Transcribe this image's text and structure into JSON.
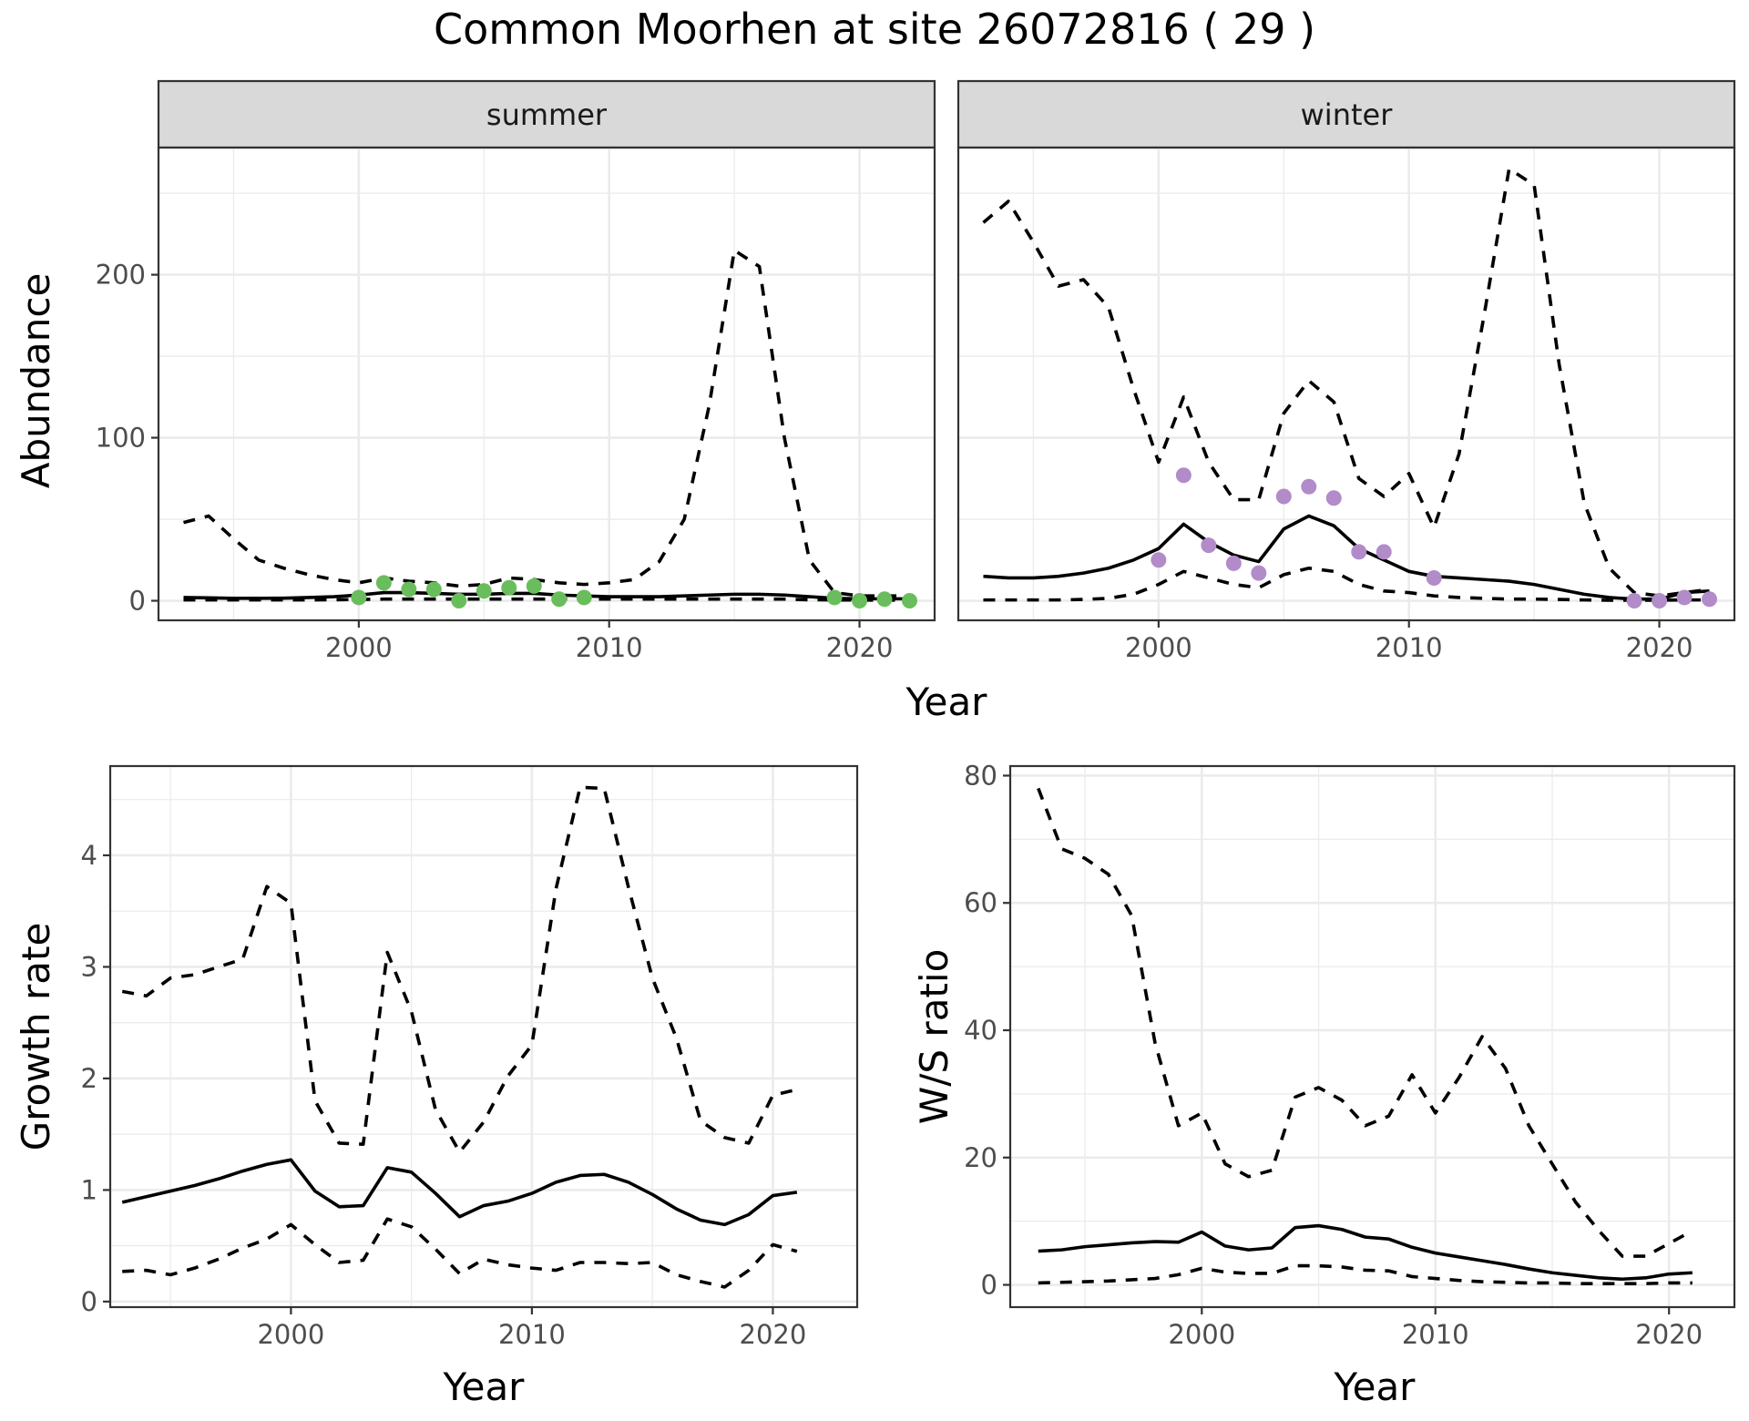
{
  "figure": {
    "title": "Common Moorhen at site 26072816 ( 29 )"
  },
  "colors": {
    "summer_points": "#6abd5c",
    "winter_points": "#b28bc9",
    "lines": "#000000"
  },
  "chart_data": [
    {
      "id": "abundance",
      "type": "line",
      "facets": [
        "summer",
        "winter"
      ],
      "xlabel": "Year",
      "ylabel": "Abundance",
      "xlim": [
        1992,
        2023
      ],
      "ylim": [
        -12,
        278
      ],
      "xticks": [
        2000,
        2010,
        2020
      ],
      "yticks": [
        0,
        100,
        200
      ],
      "grid": true,
      "panels": [
        {
          "facet": "summer",
          "x": [
            1993,
            1994,
            1995,
            1996,
            1997,
            1998,
            1999,
            2000,
            2001,
            2002,
            2003,
            2004,
            2005,
            2006,
            2007,
            2008,
            2009,
            2010,
            2011,
            2012,
            2013,
            2014,
            2015,
            2016,
            2017,
            2018,
            2019,
            2020,
            2021,
            2022
          ],
          "series": [
            {
              "role": "mean",
              "values": [
                2,
                1.8,
                1.5,
                1.5,
                1.6,
                2,
                2.5,
                3.5,
                5,
                5,
                4.5,
                4,
                4,
                4.5,
                4.5,
                3.5,
                3,
                2.5,
                2.5,
                2.5,
                3,
                3.5,
                4,
                4,
                3.5,
                2.5,
                1.5,
                1.2,
                1.2,
                1.2
              ]
            },
            {
              "role": "upper",
              "values": [
                48,
                52,
                38,
                25,
                20,
                16,
                13,
                11,
                14,
                12,
                11,
                9,
                10,
                14,
                13,
                11,
                10,
                11,
                13,
                24,
                50,
                120,
                215,
                205,
                100,
                25,
                5,
                3,
                3,
                3
              ]
            },
            {
              "role": "lower",
              "values": [
                0.5,
                0.5,
                0.5,
                0.5,
                0.5,
                0.5,
                0.6,
                0.8,
                1,
                1,
                1,
                1,
                1,
                1,
                1,
                1,
                1,
                1,
                1,
                1,
                1,
                1,
                1,
                1,
                1,
                0.6,
                0.5,
                0.4,
                0.4,
                0.4
              ]
            }
          ],
          "observed": {
            "x": [
              2000,
              2001,
              2002,
              2003,
              2004,
              2005,
              2006,
              2007,
              2008,
              2009,
              2019,
              2020,
              2021,
              2022
            ],
            "y": [
              2,
              11,
              7,
              7,
              0,
              6,
              8,
              9,
              1,
              2,
              2,
              0,
              1,
              0
            ]
          }
        },
        {
          "facet": "winter",
          "x": [
            1993,
            1994,
            1995,
            1996,
            1997,
            1998,
            1999,
            2000,
            2001,
            2002,
            2003,
            2004,
            2005,
            2006,
            2007,
            2008,
            2009,
            2010,
            2011,
            2012,
            2013,
            2014,
            2015,
            2016,
            2017,
            2018,
            2019,
            2020,
            2021,
            2022
          ],
          "series": [
            {
              "role": "mean",
              "values": [
                15,
                14,
                14,
                15,
                17,
                20,
                25,
                32,
                47,
                36,
                28,
                24,
                44,
                52,
                46,
                32,
                25,
                18,
                15,
                14,
                13,
                12,
                10,
                7,
                4,
                2,
                1,
                1,
                5,
                6
              ]
            },
            {
              "role": "upper",
              "values": [
                232,
                245,
                220,
                193,
                197,
                180,
                130,
                85,
                125,
                85,
                62,
                62,
                115,
                135,
                122,
                75,
                64,
                78,
                45,
                90,
                175,
                265,
                255,
                145,
                60,
                20,
                5,
                3,
                5,
                7
              ]
            },
            {
              "role": "lower",
              "values": [
                0.5,
                0.5,
                0.5,
                0.5,
                0.8,
                1.5,
                4,
                10,
                18,
                14,
                10,
                8,
                16,
                20,
                18,
                10,
                6,
                5,
                3,
                2,
                1.5,
                1,
                1,
                0.8,
                0.5,
                0.3,
                0.3,
                0.3,
                0.5,
                0.5
              ]
            }
          ],
          "observed": {
            "x": [
              2000,
              2001,
              2002,
              2003,
              2004,
              2005,
              2006,
              2007,
              2008,
              2009,
              2011,
              2019,
              2020,
              2021,
              2022
            ],
            "y": [
              25,
              77,
              34,
              23,
              17,
              64,
              70,
              63,
              30,
              30,
              14,
              0,
              0,
              2,
              1
            ]
          }
        }
      ]
    },
    {
      "id": "growth",
      "type": "line",
      "xlabel": "Year",
      "ylabel": "Growth rate",
      "xlim": [
        1992.5,
        2023.5
      ],
      "ylim": [
        -0.05,
        4.8
      ],
      "xticks": [
        2000,
        2010,
        2020
      ],
      "yticks": [
        0,
        1,
        2,
        3,
        4
      ],
      "grid": true,
      "x": [
        1993,
        1994,
        1995,
        1996,
        1997,
        1998,
        1999,
        2000,
        2001,
        2002,
        2003,
        2004,
        2005,
        2006,
        2007,
        2008,
        2009,
        2010,
        2011,
        2012,
        2013,
        2014,
        2015,
        2016,
        2017,
        2018,
        2019,
        2020,
        2021
      ],
      "series": [
        {
          "role": "mean",
          "values": [
            0.89,
            0.94,
            0.99,
            1.04,
            1.1,
            1.17,
            1.23,
            1.27,
            0.99,
            0.85,
            0.86,
            1.2,
            1.16,
            0.97,
            0.76,
            0.86,
            0.9,
            0.97,
            1.07,
            1.13,
            1.14,
            1.07,
            0.96,
            0.83,
            0.73,
            0.69,
            0.78,
            0.95,
            0.98
          ]
        },
        {
          "role": "upper",
          "values": [
            2.78,
            2.74,
            2.9,
            2.93,
            3.0,
            3.07,
            3.72,
            3.57,
            1.8,
            1.42,
            1.41,
            3.13,
            2.6,
            1.72,
            1.34,
            1.61,
            2.02,
            2.3,
            3.7,
            4.61,
            4.6,
            3.72,
            2.9,
            2.36,
            1.62,
            1.47,
            1.42,
            1.85,
            1.9
          ]
        },
        {
          "role": "lower",
          "values": [
            0.27,
            0.28,
            0.24,
            0.3,
            0.38,
            0.48,
            0.56,
            0.69,
            0.51,
            0.35,
            0.37,
            0.74,
            0.67,
            0.47,
            0.25,
            0.38,
            0.33,
            0.3,
            0.28,
            0.35,
            0.35,
            0.34,
            0.35,
            0.24,
            0.18,
            0.13,
            0.28,
            0.51,
            0.45
          ]
        }
      ]
    },
    {
      "id": "ws_ratio",
      "type": "line",
      "xlabel": "Year",
      "ylabel": "W/S ratio",
      "xlim": [
        1991.8,
        2022.8
      ],
      "ylim": [
        -3.5,
        81.5
      ],
      "xticks": [
        2000,
        2010,
        2020
      ],
      "yticks": [
        0,
        20,
        40,
        60,
        80
      ],
      "grid": true,
      "x": [
        1993,
        1994,
        1995,
        1996,
        1997,
        1998,
        1999,
        2000,
        2001,
        2002,
        2003,
        2004,
        2005,
        2006,
        2007,
        2008,
        2009,
        2010,
        2011,
        2012,
        2013,
        2014,
        2015,
        2016,
        2017,
        2018,
        2019,
        2020,
        2021
      ],
      "series": [
        {
          "role": "mean",
          "values": [
            5.3,
            5.5,
            6,
            6.3,
            6.6,
            6.8,
            6.7,
            8.3,
            6.1,
            5.5,
            5.8,
            9,
            9.3,
            8.7,
            7.5,
            7.2,
            5.9,
            5,
            4.4,
            3.8,
            3.2,
            2.5,
            1.9,
            1.5,
            1.1,
            0.9,
            1.1,
            1.7,
            1.9
          ]
        },
        {
          "role": "upper",
          "values": [
            78,
            68.5,
            67,
            64.5,
            58,
            38,
            25,
            27,
            19,
            17,
            18,
            29.5,
            31,
            29,
            25,
            26.5,
            33,
            27,
            32.5,
            39,
            34,
            25,
            19,
            13,
            8.5,
            4.5,
            4.5,
            6.5,
            8.5
          ]
        },
        {
          "role": "lower",
          "values": [
            0.3,
            0.4,
            0.5,
            0.6,
            0.8,
            1,
            1.6,
            2.6,
            2,
            1.8,
            1.8,
            3,
            3,
            2.8,
            2.3,
            2.2,
            1.3,
            1,
            0.7,
            0.5,
            0.4,
            0.3,
            0.3,
            0.2,
            0.2,
            0.2,
            0.2,
            0.3,
            0.3
          ]
        }
      ]
    }
  ]
}
